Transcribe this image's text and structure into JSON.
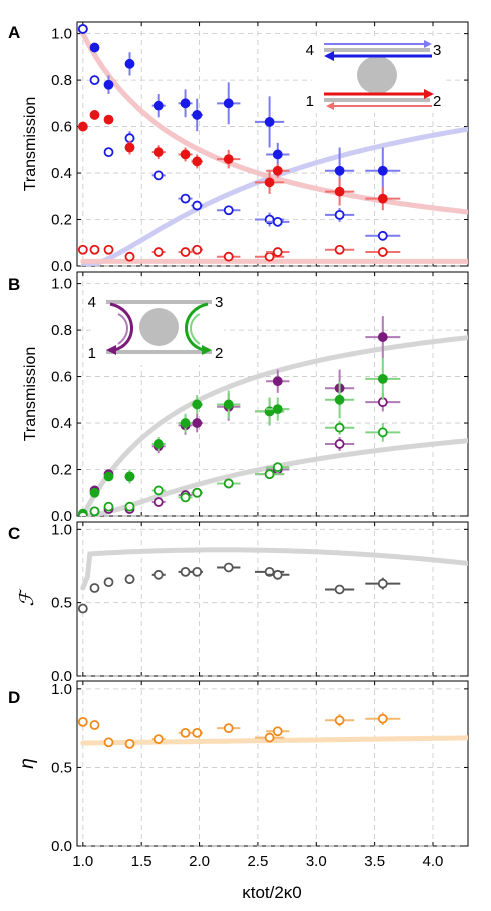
{
  "colors": {
    "blue": "#1a1ae6",
    "blue_light": "#7c7cf0",
    "blue_curve": "#c8c8f2",
    "red": "#e61414",
    "red_light": "#f07070",
    "red_curve": "#f7c4c4",
    "purple": "#7a1a7a",
    "purple_light": "#b07ab6",
    "green": "#1aa61a",
    "green_light": "#80d480",
    "gray_curve": "#d3d3d3",
    "gray_line": "#555555",
    "orange": "#f08a1a",
    "orange_light": "#f4b870",
    "orange_curve": "#fbdcb4"
  },
  "x_axis": {
    "label": "κtot/2κ0",
    "range": [
      0.95,
      4.3
    ],
    "ticks": [
      "1.0",
      "1.5",
      "2.0",
      "2.5",
      "3.0",
      "3.5",
      "4.0"
    ]
  },
  "chart_data": [
    {
      "panel": "A",
      "type": "scatter",
      "ylabel": "Transmission",
      "ylim": [
        0,
        1.05
      ],
      "yticks": [
        "0.0",
        "0.2",
        "0.4",
        "0.6",
        "0.8",
        "1.0"
      ],
      "grid": true,
      "inset_labels": [
        "4",
        "3",
        "1",
        "2"
      ],
      "series": [
        {
          "color": "blue",
          "filled": true,
          "err_color": "blue_light",
          "points": [
            [
              1.0,
              1.02,
              0,
              0.02
            ],
            [
              1.1,
              0.94,
              0.06,
              0.02
            ],
            [
              1.22,
              0.78,
              0.06,
              0.04
            ],
            [
              1.4,
              0.87,
              0.08,
              0.05
            ],
            [
              1.65,
              0.69,
              0.12,
              0.05
            ],
            [
              1.88,
              0.7,
              0.12,
              0.06
            ],
            [
              1.98,
              0.65,
              0.1,
              0.07
            ],
            [
              2.25,
              0.7,
              0.2,
              0.09
            ],
            [
              2.6,
              0.62,
              0.25,
              0.11
            ],
            [
              2.67,
              0.48,
              0.2,
              0.05
            ],
            [
              3.2,
              0.41,
              0.25,
              0.1
            ],
            [
              3.57,
              0.41,
              0.3,
              0.1
            ]
          ]
        },
        {
          "color": "blue",
          "filled": false,
          "err_color": "blue_light",
          "points": [
            [
              1.0,
              1.02,
              0,
              0
            ],
            [
              1.1,
              0.8,
              0.06,
              0.02
            ],
            [
              1.22,
              0.49,
              0.06,
              0.02
            ],
            [
              1.4,
              0.55,
              0.08,
              0.03
            ],
            [
              1.65,
              0.39,
              0.12,
              0.02
            ],
            [
              1.88,
              0.29,
              0.12,
              0.02
            ],
            [
              1.98,
              0.26,
              0.1,
              0.02
            ],
            [
              2.25,
              0.24,
              0.2,
              0.02
            ],
            [
              2.6,
              0.2,
              0.25,
              0.03
            ],
            [
              2.67,
              0.19,
              0.2,
              0.02
            ],
            [
              3.2,
              0.22,
              0.25,
              0.03
            ],
            [
              3.57,
              0.13,
              0.3,
              0.02
            ]
          ]
        },
        {
          "color": "red",
          "filled": true,
          "err_color": "red_light",
          "points": [
            [
              1.0,
              0.6,
              0.03,
              0.02
            ],
            [
              1.1,
              0.65,
              0.06,
              0.02
            ],
            [
              1.22,
              0.63,
              0.06,
              0.02
            ],
            [
              1.4,
              0.51,
              0.08,
              0.03
            ],
            [
              1.65,
              0.49,
              0.12,
              0.03
            ],
            [
              1.88,
              0.48,
              0.12,
              0.03
            ],
            [
              1.98,
              0.45,
              0.1,
              0.03
            ],
            [
              2.25,
              0.46,
              0.2,
              0.04
            ],
            [
              2.6,
              0.36,
              0.25,
              0.05
            ],
            [
              2.67,
              0.41,
              0.2,
              0.03
            ],
            [
              3.2,
              0.32,
              0.25,
              0.06
            ],
            [
              3.57,
              0.29,
              0.3,
              0.05
            ]
          ]
        },
        {
          "color": "red",
          "filled": false,
          "err_color": "red_light",
          "points": [
            [
              1.0,
              0.07,
              0.03,
              0.01
            ],
            [
              1.1,
              0.07,
              0.06,
              0.01
            ],
            [
              1.22,
              0.07,
              0.06,
              0.01
            ],
            [
              1.4,
              0.04,
              0.08,
              0.01
            ],
            [
              1.65,
              0.06,
              0.12,
              0.01
            ],
            [
              1.88,
              0.06,
              0.12,
              0.01
            ],
            [
              1.98,
              0.07,
              0.1,
              0.01
            ],
            [
              2.25,
              0.04,
              0.2,
              0.01
            ],
            [
              2.6,
              0.04,
              0.25,
              0.01
            ],
            [
              2.67,
              0.06,
              0.2,
              0.01
            ],
            [
              3.2,
              0.07,
              0.25,
              0.02
            ],
            [
              3.57,
              0.06,
              0.3,
              0.02
            ]
          ]
        }
      ],
      "curves": [
        {
          "color": "blue_curve",
          "func": "1/x"
        },
        {
          "color": "blue_curve",
          "func": "((x-1)/x)^2"
        },
        {
          "color": "red_curve",
          "func": "1/x"
        },
        {
          "color": "red_curve",
          "func": "const0.02"
        }
      ]
    },
    {
      "panel": "B",
      "type": "scatter",
      "ylabel": "Transmission",
      "ylim": [
        0,
        1.05
      ],
      "yticks": [
        "0.0",
        "0.2",
        "0.4",
        "0.6",
        "0.8",
        "1.0"
      ],
      "grid": true,
      "inset_labels": [
        "4",
        "3",
        "1",
        "2"
      ],
      "series": [
        {
          "color": "purple",
          "filled": true,
          "err_color": "purple_light",
          "points": [
            [
              1.0,
              0.0,
              0,
              0
            ],
            [
              1.1,
              0.11,
              0.06,
              0.02
            ],
            [
              1.22,
              0.18,
              0.06,
              0.02
            ],
            [
              1.4,
              0.17,
              0.08,
              0.03
            ],
            [
              1.65,
              0.3,
              0.12,
              0.03
            ],
            [
              1.88,
              0.39,
              0.12,
              0.04
            ],
            [
              1.98,
              0.4,
              0.1,
              0.04
            ],
            [
              2.25,
              0.47,
              0.2,
              0.06
            ],
            [
              2.6,
              0.45,
              0.25,
              0.06
            ],
            [
              2.67,
              0.58,
              0.2,
              0.05
            ],
            [
              3.2,
              0.55,
              0.25,
              0.08
            ],
            [
              3.57,
              0.77,
              0.3,
              0.09
            ]
          ]
        },
        {
          "color": "purple",
          "filled": false,
          "err_color": "purple_light",
          "points": [
            [
              1.0,
              0.0,
              0,
              0
            ],
            [
              1.1,
              0.02,
              0.06,
              0.01
            ],
            [
              1.22,
              0.03,
              0.06,
              0.01
            ],
            [
              1.4,
              0.03,
              0.08,
              0.01
            ],
            [
              1.65,
              0.06,
              0.12,
              0.01
            ],
            [
              1.88,
              0.09,
              0.12,
              0.01
            ],
            [
              1.98,
              0.1,
              0.1,
              0.01
            ],
            [
              2.25,
              0.14,
              0.2,
              0.02
            ],
            [
              2.6,
              0.18,
              0.25,
              0.02
            ],
            [
              2.67,
              0.2,
              0.2,
              0.02
            ],
            [
              3.2,
              0.31,
              0.25,
              0.03
            ],
            [
              3.57,
              0.49,
              0.3,
              0.04
            ]
          ]
        },
        {
          "color": "green",
          "filled": true,
          "err_color": "green_light",
          "points": [
            [
              1.0,
              0.01,
              0,
              0
            ],
            [
              1.1,
              0.1,
              0.06,
              0.02
            ],
            [
              1.22,
              0.17,
              0.06,
              0.02
            ],
            [
              1.4,
              0.17,
              0.08,
              0.03
            ],
            [
              1.65,
              0.31,
              0.12,
              0.03
            ],
            [
              1.88,
              0.4,
              0.12,
              0.04
            ],
            [
              1.98,
              0.48,
              0.1,
              0.04
            ],
            [
              2.25,
              0.48,
              0.2,
              0.06
            ],
            [
              2.6,
              0.45,
              0.25,
              0.06
            ],
            [
              2.67,
              0.46,
              0.2,
              0.05
            ],
            [
              3.2,
              0.5,
              0.25,
              0.08
            ],
            [
              3.57,
              0.59,
              0.3,
              0.09
            ]
          ]
        },
        {
          "color": "green",
          "filled": false,
          "err_color": "green_light",
          "points": [
            [
              1.0,
              0.0,
              0,
              0
            ],
            [
              1.1,
              0.02,
              0.06,
              0.01
            ],
            [
              1.22,
              0.04,
              0.06,
              0.01
            ],
            [
              1.4,
              0.04,
              0.08,
              0.01
            ],
            [
              1.65,
              0.11,
              0.12,
              0.01
            ],
            [
              1.88,
              0.08,
              0.12,
              0.01
            ],
            [
              1.98,
              0.1,
              0.1,
              0.01
            ],
            [
              2.25,
              0.14,
              0.2,
              0.02
            ],
            [
              2.6,
              0.18,
              0.25,
              0.02
            ],
            [
              2.67,
              0.21,
              0.2,
              0.02
            ],
            [
              3.2,
              0.38,
              0.25,
              0.03
            ],
            [
              3.57,
              0.36,
              0.3,
              0.04
            ]
          ]
        }
      ],
      "curves": [
        {
          "color": "gray_curve",
          "func": "1-1/x"
        },
        {
          "color": "gray_curve",
          "func": "(1-1/x)^2"
        }
      ]
    },
    {
      "panel": "C",
      "type": "scatter",
      "ylabel": "ℱ",
      "ylim": [
        0,
        1.05
      ],
      "yticks": [
        "0.0",
        "0.5",
        "1.0"
      ],
      "grid": true,
      "series": [
        {
          "color": "gray_line",
          "filled": false,
          "err_color": "gray_line",
          "points": [
            [
              1.0,
              0.46,
              0,
              0.02
            ],
            [
              1.1,
              0.6,
              0.06,
              0.02
            ],
            [
              1.22,
              0.64,
              0.06,
              0.02
            ],
            [
              1.4,
              0.66,
              0.08,
              0.02
            ],
            [
              1.65,
              0.69,
              0.12,
              0.02
            ],
            [
              1.88,
              0.71,
              0.12,
              0.02
            ],
            [
              1.98,
              0.71,
              0.1,
              0.02
            ],
            [
              2.25,
              0.74,
              0.2,
              0.03
            ],
            [
              2.6,
              0.71,
              0.25,
              0.03
            ],
            [
              2.67,
              0.69,
              0.2,
              0.02
            ],
            [
              3.2,
              0.59,
              0.25,
              0.03
            ],
            [
              3.57,
              0.63,
              0.3,
              0.04
            ]
          ]
        }
      ],
      "curves": [
        {
          "color": "gray_curve",
          "func": "fid"
        }
      ]
    },
    {
      "panel": "D",
      "type": "scatter",
      "ylabel": "η",
      "ylim": [
        0,
        1.05
      ],
      "yticks": [
        "0.0",
        "0.5",
        "1.0"
      ],
      "grid": true,
      "series": [
        {
          "color": "orange",
          "filled": false,
          "err_color": "orange_light",
          "points": [
            [
              1.0,
              0.79,
              0,
              0.02
            ],
            [
              1.1,
              0.77,
              0.06,
              0.02
            ],
            [
              1.22,
              0.66,
              0.06,
              0.02
            ],
            [
              1.4,
              0.65,
              0.08,
              0.02
            ],
            [
              1.65,
              0.68,
              0.12,
              0.02
            ],
            [
              1.88,
              0.72,
              0.12,
              0.02
            ],
            [
              1.98,
              0.72,
              0.1,
              0.02
            ],
            [
              2.25,
              0.75,
              0.2,
              0.03
            ],
            [
              2.6,
              0.69,
              0.25,
              0.03
            ],
            [
              2.67,
              0.73,
              0.2,
              0.02
            ],
            [
              3.2,
              0.8,
              0.25,
              0.04
            ],
            [
              3.57,
              0.81,
              0.3,
              0.04
            ]
          ]
        }
      ],
      "curves": [
        {
          "color": "orange_curve",
          "func": "eff"
        }
      ]
    }
  ]
}
